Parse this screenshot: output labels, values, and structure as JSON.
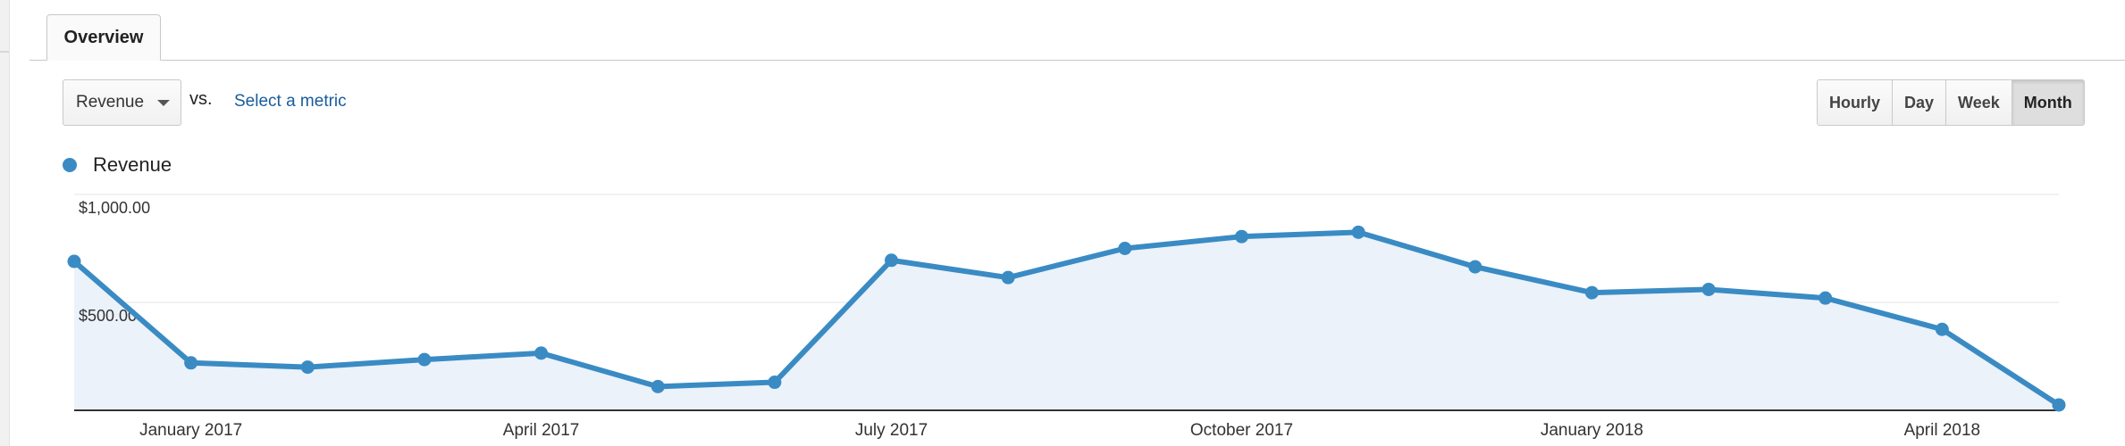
{
  "tabs": [
    {
      "label": "Overview"
    }
  ],
  "metric_selector": {
    "value": "Revenue",
    "icon": "caret-down-icon"
  },
  "compare": {
    "vs_label": "vs.",
    "select_metric_label": "Select a metric"
  },
  "granularity": {
    "options": [
      "Hourly",
      "Day",
      "Week",
      "Month"
    ],
    "selected": "Month"
  },
  "legend": {
    "label": "Revenue",
    "color": "#3a8bc4"
  },
  "colors": {
    "line": "#3a8bc4",
    "area": "#ebf2fa",
    "link": "#1a5b9c"
  },
  "chart_data": {
    "type": "area",
    "x": [
      "Dec 2016",
      "Jan 2017",
      "Feb 2017",
      "Mar 2017",
      "Apr 2017",
      "May 2017",
      "Jun 2017",
      "Jul 2017",
      "Aug 2017",
      "Sep 2017",
      "Oct 2017",
      "Nov 2017",
      "Dec 2017",
      "Jan 2018",
      "Feb 2018",
      "Mar 2018",
      "Apr 2018",
      "May 2018"
    ],
    "series": [
      {
        "name": "Revenue",
        "values": [
          690,
          220,
          200,
          235,
          265,
          110,
          130,
          695,
          615,
          750,
          805,
          825,
          665,
          545,
          560,
          520,
          375,
          25
        ]
      }
    ],
    "y_ticks": [
      {
        "value": 1000,
        "label": "$1,000.00"
      },
      {
        "value": 500,
        "label": "$500.00"
      }
    ],
    "x_ticks": [
      {
        "index": 1,
        "label": "January 2017"
      },
      {
        "index": 4,
        "label": "April 2017"
      },
      {
        "index": 7,
        "label": "July 2017"
      },
      {
        "index": 10,
        "label": "October 2017"
      },
      {
        "index": 13,
        "label": "January 2018"
      },
      {
        "index": 16,
        "label": "April 2018"
      }
    ],
    "ylim": [
      0,
      1000
    ],
    "grid": true,
    "legend": "top-left"
  }
}
